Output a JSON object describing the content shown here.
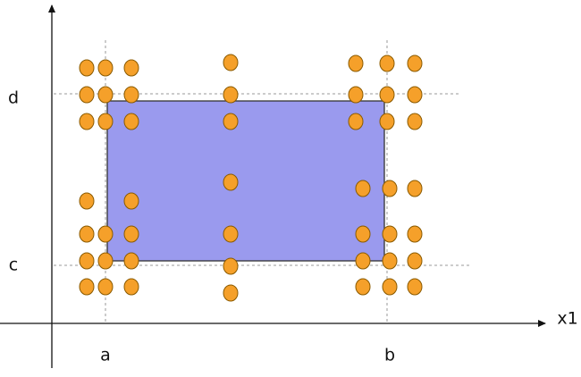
{
  "y_axis": {
    "marks": [
      "d",
      "c"
    ]
  },
  "x_axis": {
    "label": "x1",
    "marks": [
      "a",
      "b"
    ]
  }
}
